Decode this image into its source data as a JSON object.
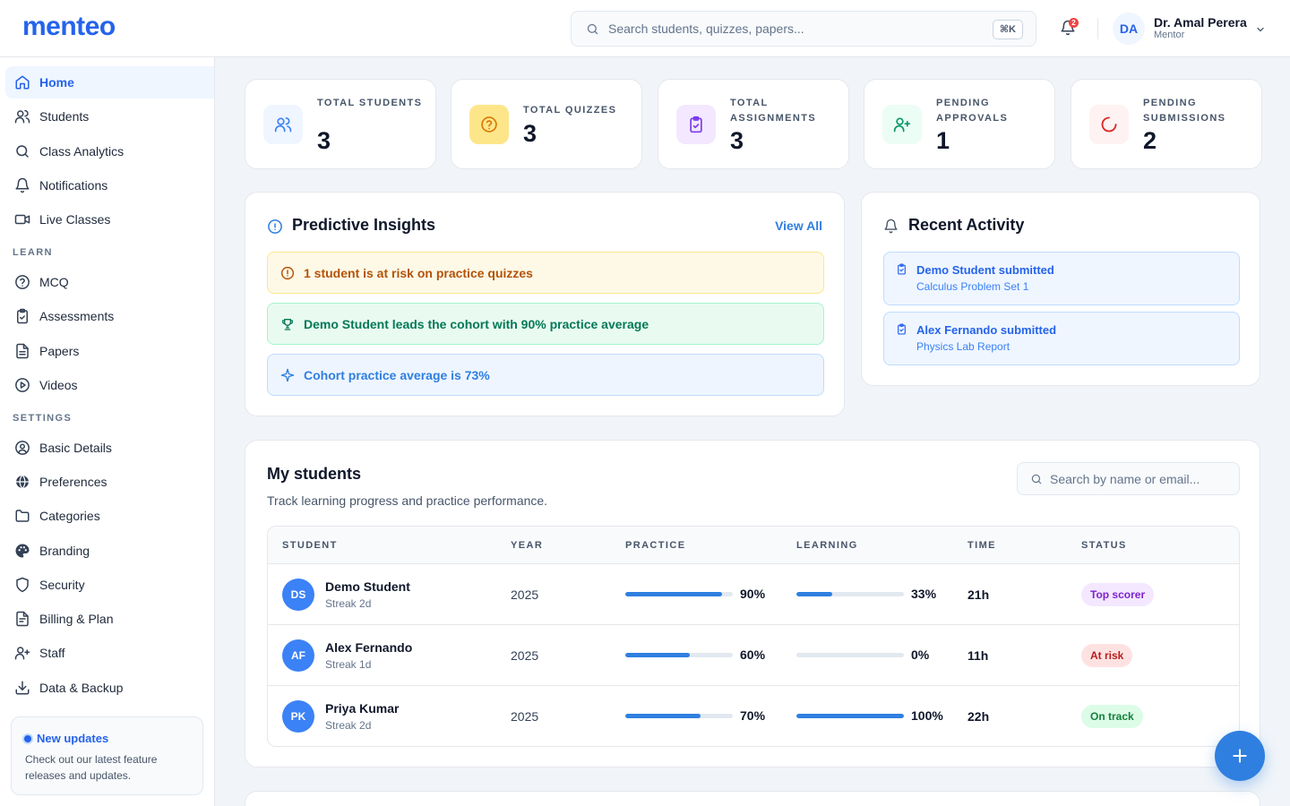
{
  "brand": {
    "logo": "menteo"
  },
  "header": {
    "search_placeholder": "Search students, quizzes, papers...",
    "search_shortcut": "⌘K",
    "notification_count": "2",
    "user": {
      "initials": "DA",
      "name": "Dr. Amal Perera",
      "role": "Mentor"
    }
  },
  "sidebar": {
    "main": [
      {
        "label": "Home",
        "icon": "home-icon"
      },
      {
        "label": "Students",
        "icon": "users-icon"
      },
      {
        "label": "Class Analytics",
        "icon": "search-icon"
      },
      {
        "label": "Notifications",
        "icon": "bell-icon"
      },
      {
        "label": "Live Classes",
        "icon": "video-icon"
      }
    ],
    "learn_heading": "LEARN",
    "learn": [
      {
        "label": "MCQ",
        "icon": "help-circle-icon"
      },
      {
        "label": "Assessments",
        "icon": "clipboard-check-icon"
      },
      {
        "label": "Papers",
        "icon": "file-text-icon"
      },
      {
        "label": "Videos",
        "icon": "play-circle-icon"
      }
    ],
    "settings_heading": "SETTINGS",
    "settings": [
      {
        "label": "Basic Details",
        "icon": "user-circle-icon"
      },
      {
        "label": "Preferences",
        "icon": "globe-icon"
      },
      {
        "label": "Categories",
        "icon": "folder-icon"
      },
      {
        "label": "Branding",
        "icon": "palette-icon"
      },
      {
        "label": "Security",
        "icon": "shield-icon"
      },
      {
        "label": "Billing & Plan",
        "icon": "receipt-icon"
      },
      {
        "label": "Staff",
        "icon": "user-plus-icon"
      },
      {
        "label": "Data & Backup",
        "icon": "download-icon"
      }
    ],
    "updates": {
      "title": "New updates",
      "description": "Check out our latest feature releases and updates."
    }
  },
  "stats": [
    {
      "label": "TOTAL STUDENTS",
      "value": "3",
      "icon": "users-icon",
      "color": "#3b82f6"
    },
    {
      "label": "TOTAL QUIZZES",
      "value": "3",
      "icon": "help-circle-icon",
      "color": "#d97706"
    },
    {
      "label": "TOTAL ASSIGNMENTS",
      "value": "3",
      "icon": "clipboard-check-icon",
      "color": "#7c3aed"
    },
    {
      "label": "PENDING APPROVALS",
      "value": "1",
      "icon": "user-plus-icon",
      "color": "#059669"
    },
    {
      "label": "PENDING SUBMISSIONS",
      "value": "2",
      "icon": "loader-icon",
      "color": "#dc2626"
    }
  ],
  "insights": {
    "title": "Predictive Insights",
    "view_all": "View All",
    "items": [
      {
        "text": "1 student is at risk on practice quizzes",
        "icon": "alert-circle-icon",
        "color": "#b45309"
      },
      {
        "text": "Demo Student leads the cohort with 90% practice average",
        "icon": "trophy-icon",
        "color": "#047857"
      },
      {
        "text": "Cohort practice average is 73%",
        "icon": "sparkle-icon",
        "color": "#2f7fe0"
      }
    ]
  },
  "activity": {
    "title": "Recent Activity",
    "items": [
      {
        "title": "Demo Student submitted",
        "subtitle": "Calculus Problem Set 1"
      },
      {
        "title": "Alex Fernando submitted",
        "subtitle": "Physics Lab Report"
      }
    ]
  },
  "students": {
    "title": "My students",
    "subtitle": "Track learning progress and practice performance.",
    "search_placeholder": "Search by name or email...",
    "columns": [
      "STUDENT",
      "YEAR",
      "PRACTICE",
      "LEARNING",
      "TIME",
      "STATUS"
    ],
    "rows": [
      {
        "initials": "DS",
        "name": "Demo Student",
        "streak": "Streak 2d",
        "year": "2025",
        "practice": 90,
        "practice_label": "90%",
        "learning": 33,
        "learning_label": "33%",
        "time": "21h",
        "status": "Top scorer",
        "status_color": "#7e22ce",
        "status_bg": "#f3e8ff"
      },
      {
        "initials": "AF",
        "name": "Alex Fernando",
        "streak": "Streak 1d",
        "year": "2025",
        "practice": 60,
        "practice_label": "60%",
        "learning": 0,
        "learning_label": "0%",
        "time": "11h",
        "status": "At risk",
        "status_color": "#b91c1c",
        "status_bg": "#fee2e2"
      },
      {
        "initials": "PK",
        "name": "Priya Kumar",
        "streak": "Streak 2d",
        "year": "2025",
        "practice": 70,
        "practice_label": "70%",
        "learning": 100,
        "learning_label": "100%",
        "time": "22h",
        "status": "On track",
        "status_color": "#15803d",
        "status_bg": "#dcfce7"
      }
    ]
  }
}
